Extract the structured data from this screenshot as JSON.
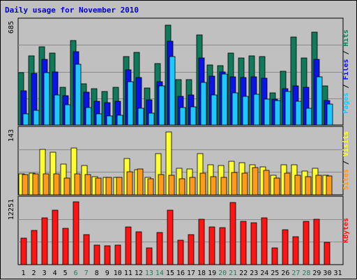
{
  "chart_data": {
    "type": "bar",
    "title": "Daily usage for November 2010",
    "categories": [
      "1",
      "2",
      "3",
      "4",
      "5",
      "6",
      "7",
      "8",
      "9",
      "10",
      "11",
      "12",
      "13",
      "14",
      "15",
      "16",
      "17",
      "18",
      "19",
      "20",
      "21",
      "22",
      "23",
      "24",
      "25",
      "26",
      "27",
      "28",
      "29",
      "30",
      "31"
    ],
    "weekend_days": [
      "6",
      "7",
      "13",
      "14",
      "20",
      "21",
      "27",
      "28"
    ],
    "colors": {
      "background": "#c0c0c0",
      "weekday_label": "#000000",
      "weekend_label": "#2a7a5a",
      "title": "#0000cc",
      "hits": "#0f7b5a",
      "files": "#0a14e6",
      "pages": "#1ec8ff",
      "visits": "#ffff33",
      "sites": "#ff9a1a",
      "kbytes": "#ff1414"
    },
    "panels": [
      {
        "name": "Pages / Files / Hits",
        "ymax_label": "685",
        "ylim": [
          0,
          685
        ],
        "legend": [
          {
            "label": "Pages",
            "color": "#1ec8ff"
          },
          {
            "label": "Files",
            "color": "#0a14e6"
          },
          {
            "label": "Hits",
            "color": "#0f7b5a"
          }
        ],
        "series": [
          {
            "name": "Hits",
            "values": [
              355,
              470,
              530,
              485,
              255,
              570,
              280,
              245,
              228,
              255,
              465,
              490,
              250,
              415,
              675,
              305,
              305,
              610,
              405,
              400,
              485,
              455,
              470,
              465,
              215,
              365,
              595,
              455,
              630,
              265,
              0
            ]
          },
          {
            "name": "Files",
            "values": [
              230,
              350,
              445,
              360,
              200,
              495,
              220,
              160,
              150,
              160,
              375,
              320,
              170,
              295,
              565,
              195,
              205,
              455,
              330,
              360,
              325,
              320,
              325,
              315,
              175,
              245,
              265,
              255,
              445,
              165,
              0
            ]
          },
          {
            "name": "Pages",
            "values": [
              75,
              100,
              355,
              205,
              135,
              410,
              120,
              75,
              60,
              65,
              295,
              115,
              80,
              265,
              465,
              120,
              125,
              290,
              205,
              345,
              215,
              195,
              210,
              175,
              165,
              225,
              160,
              115,
              325,
              140,
              0
            ]
          }
        ]
      },
      {
        "name": "Sites / Visits",
        "ymax_label": "143",
        "ylim": [
          0,
          143
        ],
        "legend": [
          {
            "label": "Sites",
            "color": "#ff9a1a"
          },
          {
            "label": "Visits",
            "color": "#ffff33"
          }
        ],
        "series": [
          {
            "name": "Visits",
            "values": [
              47,
              50,
              103,
              97,
              70,
              106,
              67,
              42,
              39,
              40,
              82,
              57,
              40,
              94,
              143,
              60,
              59,
              93,
              69,
              66,
              76,
              73,
              69,
              63,
              44,
              69,
              69,
              54,
              60,
              45,
              0
            ]
          },
          {
            "name": "Sites",
            "values": [
              46,
              47,
              47,
              47,
              38,
              47,
              46,
              38,
              39,
              40,
              52,
              58,
              37,
              46,
              45,
              37,
              40,
              49,
              41,
              40,
              51,
              49,
              62,
              55,
              38,
              50,
              45,
              41,
              44,
              43,
              0
            ]
          }
        ]
      },
      {
        "name": "KBytes",
        "ymax_label": "12251",
        "ylim": [
          0,
          12251
        ],
        "legend": [
          {
            "label": "KBytes",
            "color": "#ff1414"
          }
        ],
        "series": [
          {
            "name": "KBytes",
            "values": [
              5200,
              6700,
              9100,
              10600,
              7100,
              12251,
              5900,
              3800,
              3700,
              3800,
              7300,
              6400,
              3200,
              6200,
              10600,
              4800,
              5800,
              8800,
              7300,
              7200,
              12100,
              8400,
              8100,
              9100,
              3300,
              6800,
              5400,
              8400,
              8900,
              4400,
              0
            ]
          }
        ]
      }
    ]
  }
}
